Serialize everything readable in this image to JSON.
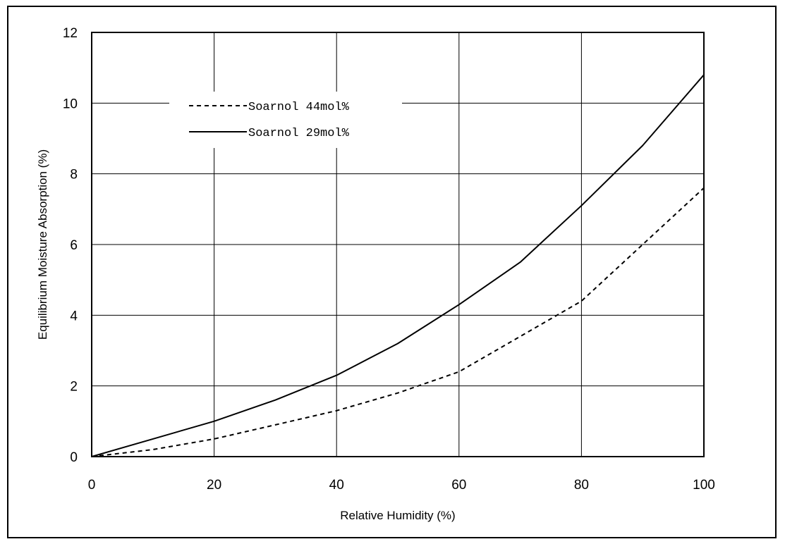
{
  "chart_data": {
    "type": "line",
    "xlabel": "Relative Humidity (%)",
    "ylabel": "Equilibrium Moisture Absorption (%)",
    "xlim": [
      0,
      100
    ],
    "ylim": [
      0,
      12
    ],
    "xticks": [
      0,
      20,
      40,
      60,
      80,
      100
    ],
    "yticks": [
      0,
      2,
      4,
      6,
      8,
      10,
      12
    ],
    "grid": true,
    "legend_position": "top-left",
    "series": [
      {
        "name": "Soarnol 44mol%",
        "style": "dashed",
        "color": "#000000",
        "x": [
          0,
          10,
          20,
          30,
          40,
          50,
          60,
          70,
          80,
          90,
          100
        ],
        "y": [
          0,
          0.2,
          0.5,
          0.9,
          1.3,
          1.8,
          2.4,
          3.4,
          4.4,
          6.0,
          7.6
        ]
      },
      {
        "name": "Soarnol 29mol%",
        "style": "solid",
        "color": "#000000",
        "x": [
          0,
          10,
          20,
          30,
          40,
          50,
          60,
          70,
          80,
          90,
          100
        ],
        "y": [
          0,
          0.5,
          1.0,
          1.6,
          2.3,
          3.2,
          4.3,
          5.5,
          7.1,
          8.8,
          10.8
        ]
      }
    ]
  }
}
